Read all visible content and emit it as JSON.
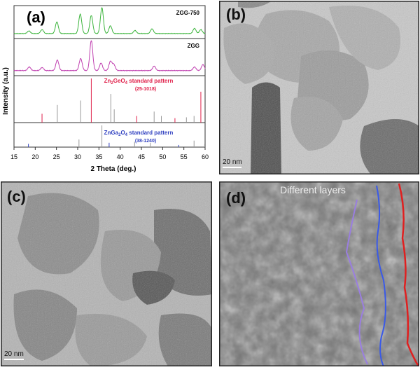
{
  "panels": [
    {
      "label": "(a)"
    },
    {
      "label": "(b)",
      "scale_bar": "20 nm"
    },
    {
      "label": "(c)",
      "scale_bar": "20 nm"
    },
    {
      "label": "(d)",
      "annotation": "Different layers"
    }
  ],
  "xrd": {
    "x_label": "2 Theta (deg.)",
    "y_label": "Intensity (a.u.)",
    "xlim": [
      15,
      60
    ],
    "xticks": [
      15,
      20,
      25,
      30,
      35,
      40,
      45,
      50,
      55,
      60
    ],
    "traces": [
      {
        "name": "ZGG-750",
        "color": "#3cb43c",
        "peaks": [
          [
            18.5,
            10
          ],
          [
            21.6,
            15
          ],
          [
            25.1,
            45
          ],
          [
            30.6,
            75
          ],
          [
            33.2,
            70
          ],
          [
            35.7,
            100
          ],
          [
            37.7,
            30
          ],
          [
            43.5,
            12
          ],
          [
            47.5,
            18
          ],
          [
            57.5,
            20
          ],
          [
            59,
            15
          ]
        ]
      },
      {
        "name": "ZGG",
        "color": "#c040b0",
        "peaks": [
          [
            18.6,
            12
          ],
          [
            21.6,
            10
          ],
          [
            25.2,
            35
          ],
          [
            30.7,
            40
          ],
          [
            33.2,
            100
          ],
          [
            35.5,
            25
          ],
          [
            37.7,
            30
          ],
          [
            38.5,
            20
          ],
          [
            48,
            15
          ],
          [
            57.5,
            12
          ],
          [
            59.5,
            20
          ]
        ]
      }
    ],
    "references": [
      {
        "name": [
          "Zn",
          "2",
          "GeO",
          "4",
          " standard pattern"
        ],
        "code": "(25-1018)",
        "color": "#e0204a",
        "sticks": [
          [
            21.6,
            20
          ],
          [
            25.2,
            40
          ],
          [
            30.7,
            50
          ],
          [
            33.2,
            100
          ],
          [
            37.8,
            65
          ],
          [
            38.6,
            30
          ],
          [
            43.9,
            15
          ],
          [
            48.0,
            25
          ],
          [
            49.7,
            15
          ],
          [
            52.9,
            10
          ],
          [
            55.6,
            12
          ],
          [
            57.4,
            15
          ],
          [
            59.0,
            70
          ]
        ]
      },
      {
        "name": [
          "ZnGa",
          "2",
          "O",
          "4",
          " standard pattern"
        ],
        "code": "(38-1240)",
        "color": "#3040c0",
        "sticks": [
          [
            18.4,
            15
          ],
          [
            30.3,
            35
          ],
          [
            35.7,
            100
          ],
          [
            37.4,
            20
          ],
          [
            43.4,
            25
          ],
          [
            47.1,
            20
          ],
          [
            53.8,
            10
          ],
          [
            57.4,
            30
          ],
          [
            59.9,
            15
          ]
        ]
      }
    ]
  }
}
